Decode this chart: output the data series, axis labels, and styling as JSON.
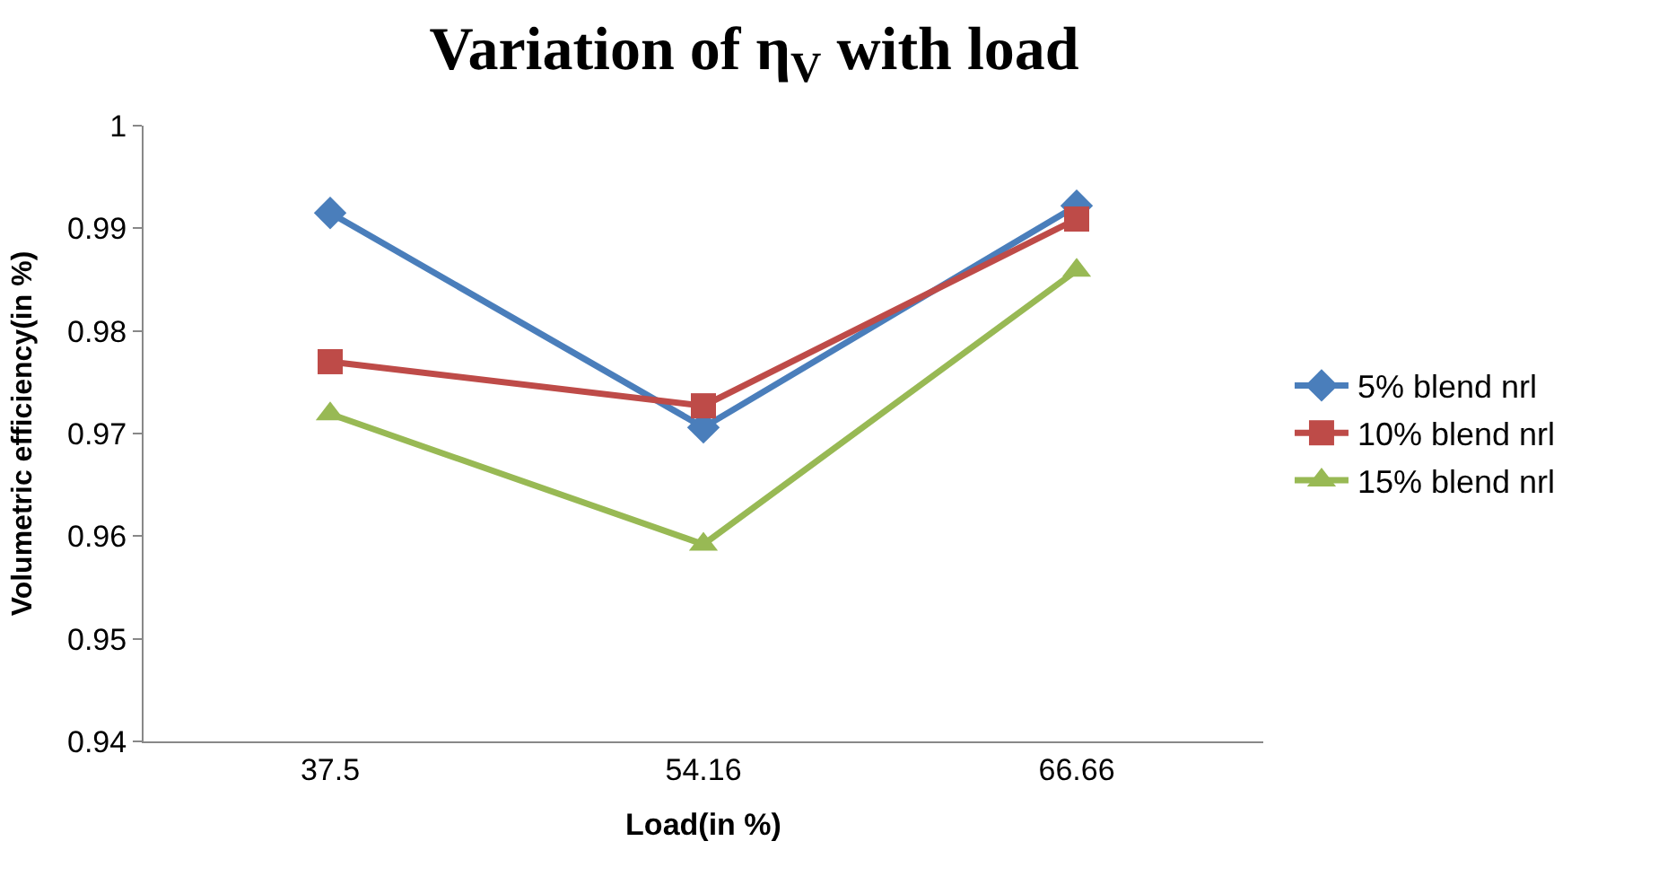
{
  "chart_data": {
    "type": "line",
    "title": "Variation of η$_{V}$ with load",
    "xlabel": "Load(in %)",
    "ylabel": "Volumetric efficiency(in %)",
    "categories": [
      "37.5",
      "54.16",
      "66.66"
    ],
    "series": [
      {
        "name": "5% blend nrl",
        "color": "#4a7ebb",
        "marker": "diamond",
        "values": [
          0.9915,
          0.9706,
          0.9922
        ]
      },
      {
        "name": "10% blend nrl",
        "color": "#be4b48",
        "marker": "square",
        "values": [
          0.977,
          0.9727,
          0.9909
        ]
      },
      {
        "name": "15% blend nrl",
        "color": "#98b954",
        "marker": "triangle",
        "values": [
          0.9719,
          0.9592,
          0.9859
        ]
      }
    ],
    "ylim": [
      0.94,
      1
    ],
    "yticks": [
      0.94,
      0.95,
      0.96,
      0.97,
      0.98,
      0.99,
      1
    ],
    "legend": "right"
  }
}
